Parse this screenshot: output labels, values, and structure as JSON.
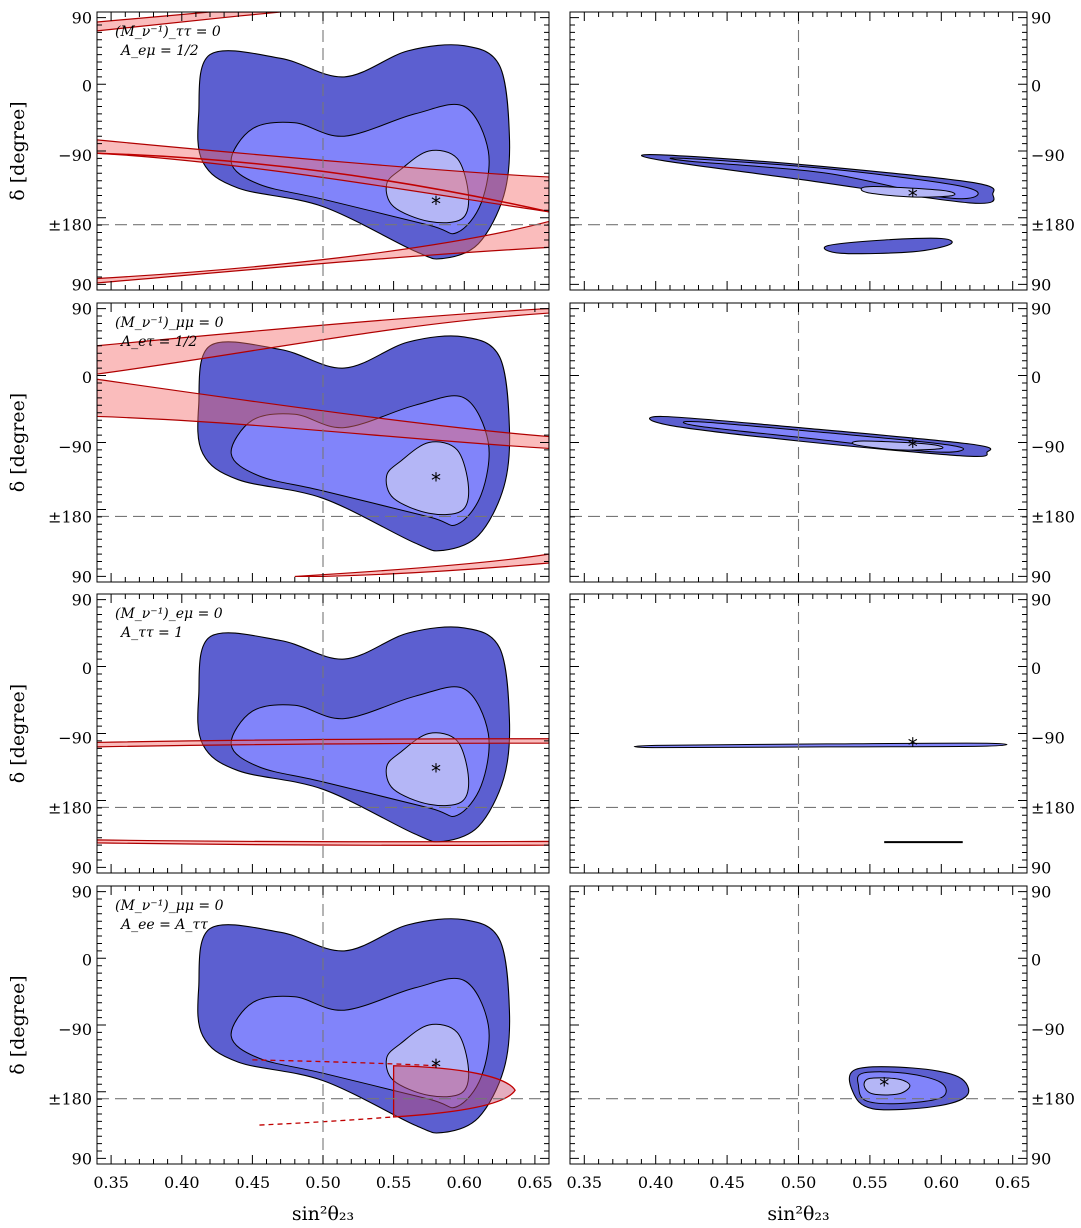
{
  "chart_data": {
    "type": "contour",
    "xlabel": "sin²θ₂₃",
    "ylabel": "δ [degree]",
    "xlim": [
      0.34,
      0.66
    ],
    "ylim_description": "δ from +90 (top) through 0, −90, ±180 to 90 (bottom)",
    "x_ticks": [
      "0.35",
      "0.40",
      "0.45",
      "0.50",
      "0.55",
      "0.60",
      "0.65"
    ],
    "y_ticks": [
      "90",
      "0",
      "−90",
      "±180",
      "90"
    ],
    "reference_lines": {
      "x": 0.5,
      "y": "±180"
    },
    "panels": [
      {
        "row": 1,
        "column": "left",
        "annotation_line1": "(M_ν⁻¹)_ττ = 0",
        "annotation_line2": "A_eμ = 1/2",
        "best_fit": {
          "x": 0.58,
          "y": -160
        }
      },
      {
        "row": 1,
        "column": "right",
        "best_fit": {
          "x": 0.58,
          "y": -150
        }
      },
      {
        "row": 2,
        "column": "left",
        "annotation_line1": "(M_ν⁻¹)_μμ = 0",
        "annotation_line2": "A_eτ = 1/2",
        "best_fit": {
          "x": 0.58,
          "y": -140
        }
      },
      {
        "row": 2,
        "column": "right",
        "best_fit": {
          "x": 0.58,
          "y": -95
        }
      },
      {
        "row": 3,
        "column": "left",
        "annotation_line1": "(M_ν⁻¹)_eμ = 0",
        "annotation_line2": "A_ττ = 1",
        "best_fit": {
          "x": 0.58,
          "y": -140
        }
      },
      {
        "row": 3,
        "column": "right",
        "best_fit": {
          "x": 0.58,
          "y": -105
        }
      },
      {
        "row": 4,
        "column": "left",
        "annotation_line1": "(M_ν⁻¹)_μμ = 0",
        "annotation_line2": "A_ee = A_ττ",
        "best_fit": {
          "x": 0.58,
          "y": -145
        }
      },
      {
        "row": 4,
        "column": "right",
        "best_fit": {
          "x": 0.56,
          "y": -170
        }
      }
    ]
  }
}
